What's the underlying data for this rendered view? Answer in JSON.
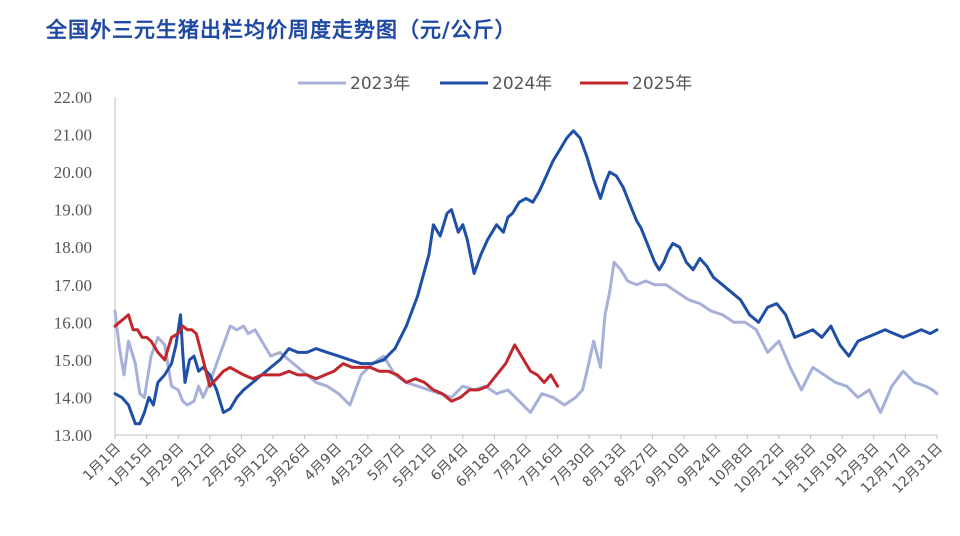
{
  "chart_data": {
    "type": "line",
    "title": "全国外三元生猪出栏均价周度走势图（元/公斤）",
    "xlabel": "",
    "ylabel": "",
    "ylim": [
      13.0,
      22.0
    ],
    "y_ticks": [
      "13.00",
      "14.00",
      "15.00",
      "16.00",
      "17.00",
      "18.00",
      "19.00",
      "20.00",
      "21.00",
      "22.00"
    ],
    "x_tick_labels": [
      "1月1日",
      "1月15日",
      "1月29日",
      "2月12日",
      "2月26日",
      "3月12日",
      "3月26日",
      "4月9日",
      "4月23日",
      "5月7日",
      "5月21日",
      "6月4日",
      "6月18日",
      "7月2日",
      "7月16日",
      "7月30日",
      "8月13日",
      "8月27日",
      "9月10日",
      "9月24日",
      "10月8日",
      "10月22日",
      "11月5日",
      "11月19日",
      "12月3日",
      "12月17日",
      "12月31日"
    ],
    "x_unit": "day_of_year",
    "x_range": [
      1,
      365
    ],
    "grid": false,
    "legend_position": "top",
    "series": [
      {
        "name": "2023年",
        "color": "#a7b0d9",
        "x": [
          1,
          3,
          5,
          7,
          10,
          12,
          14,
          17,
          20,
          23,
          26,
          29,
          31,
          33,
          36,
          38,
          40,
          43,
          46,
          49,
          52,
          55,
          58,
          60,
          63,
          66,
          70,
          74,
          78,
          82,
          86,
          90,
          95,
          100,
          105,
          110,
          115,
          120,
          125,
          130,
          135,
          140,
          145,
          150,
          155,
          160,
          165,
          170,
          175,
          180,
          185,
          190,
          195,
          200,
          205,
          208,
          210,
          213,
          216,
          218,
          220,
          222,
          225,
          228,
          232,
          236,
          240,
          245,
          250,
          255,
          260,
          265,
          270,
          275,
          280,
          285,
          290,
          295,
          300,
          305,
          310,
          315,
          320,
          325,
          330,
          335,
          340,
          345,
          350,
          355,
          360,
          363,
          365
        ],
        "values": [
          16.3,
          15.3,
          14.6,
          15.5,
          14.9,
          14.1,
          14.0,
          15.1,
          15.6,
          15.4,
          14.3,
          14.2,
          13.9,
          13.8,
          13.9,
          14.3,
          14.0,
          14.4,
          14.9,
          15.4,
          15.9,
          15.8,
          15.9,
          15.7,
          15.8,
          15.5,
          15.1,
          15.2,
          15.0,
          14.8,
          14.6,
          14.4,
          14.3,
          14.1,
          13.8,
          14.6,
          14.9,
          15.1,
          14.6,
          14.4,
          14.3,
          14.2,
          14.1,
          14.0,
          14.3,
          14.2,
          14.3,
          14.1,
          14.2,
          13.9,
          13.6,
          14.1,
          14.0,
          13.8,
          14.0,
          14.2,
          14.7,
          15.5,
          14.8,
          16.2,
          16.8,
          17.6,
          17.4,
          17.1,
          17.0,
          17.1,
          17.0,
          17.0,
          16.8,
          16.6,
          16.5,
          16.3,
          16.2,
          16.0,
          16.0,
          15.8,
          15.2,
          15.5,
          14.8,
          14.2,
          14.8,
          14.6,
          14.4,
          14.3,
          14.0,
          14.2,
          13.6,
          14.3,
          14.7,
          14.4,
          14.3,
          14.2,
          14.1
        ]
      },
      {
        "name": "2024年",
        "color": "#1f4fa6",
        "x": [
          1,
          4,
          7,
          10,
          12,
          14,
          16,
          18,
          20,
          23,
          26,
          28,
          30,
          31,
          32,
          34,
          36,
          38,
          40,
          43,
          46,
          49,
          52,
          55,
          58,
          62,
          66,
          70,
          74,
          78,
          82,
          86,
          90,
          95,
          100,
          105,
          110,
          115,
          120,
          125,
          130,
          135,
          140,
          142,
          145,
          148,
          150,
          153,
          155,
          157,
          160,
          163,
          166,
          170,
          173,
          175,
          177,
          180,
          183,
          186,
          189,
          192,
          195,
          198,
          201,
          204,
          207,
          210,
          213,
          216,
          218,
          220,
          223,
          226,
          228,
          230,
          232,
          234,
          236,
          238,
          240,
          242,
          244,
          246,
          248,
          251,
          254,
          257,
          260,
          263,
          266,
          270,
          274,
          278,
          282,
          286,
          290,
          294,
          298,
          302,
          306,
          310,
          314,
          318,
          322,
          326,
          330,
          334,
          338,
          342,
          346,
          350,
          354,
          358,
          362,
          365
        ],
        "values": [
          14.1,
          14.0,
          13.8,
          13.3,
          13.3,
          13.6,
          14.0,
          13.8,
          14.4,
          14.6,
          14.9,
          15.4,
          16.2,
          15.2,
          14.4,
          15.0,
          15.1,
          14.7,
          14.8,
          14.6,
          14.2,
          13.6,
          13.7,
          14.0,
          14.2,
          14.4,
          14.6,
          14.8,
          15.0,
          15.3,
          15.2,
          15.2,
          15.3,
          15.2,
          15.1,
          15.0,
          14.9,
          14.9,
          15.0,
          15.3,
          15.9,
          16.7,
          17.8,
          18.6,
          18.3,
          18.9,
          19.0,
          18.4,
          18.6,
          18.2,
          17.3,
          17.8,
          18.2,
          18.6,
          18.4,
          18.8,
          18.9,
          19.2,
          19.3,
          19.2,
          19.5,
          19.9,
          20.3,
          20.6,
          20.9,
          21.1,
          20.9,
          20.4,
          19.8,
          19.3,
          19.7,
          20.0,
          19.9,
          19.6,
          19.3,
          19.0,
          18.7,
          18.5,
          18.2,
          17.9,
          17.6,
          17.4,
          17.6,
          17.9,
          18.1,
          18.0,
          17.6,
          17.4,
          17.7,
          17.5,
          17.2,
          17.0,
          16.8,
          16.6,
          16.2,
          16.0,
          16.4,
          16.5,
          16.2,
          15.6,
          15.7,
          15.8,
          15.6,
          15.9,
          15.4,
          15.1,
          15.5,
          15.6,
          15.7,
          15.8,
          15.7,
          15.6,
          15.7,
          15.8,
          15.7,
          15.8
        ]
      },
      {
        "name": "2025年",
        "color": "#c0282d",
        "x": [
          1,
          3,
          5,
          7,
          9,
          11,
          13,
          15,
          17,
          20,
          23,
          26,
          29,
          31,
          33,
          35,
          37,
          40,
          43,
          46,
          49,
          52,
          55,
          58,
          62,
          66,
          70,
          74,
          78,
          82,
          86,
          90,
          94,
          98,
          102,
          106,
          110,
          114,
          118,
          122,
          126,
          130,
          134,
          138,
          142,
          146,
          150,
          154,
          158,
          162,
          166,
          170,
          174,
          178,
          182,
          185,
          188,
          191,
          194,
          197
        ],
        "values": [
          15.9,
          16.0,
          16.1,
          16.2,
          15.8,
          15.8,
          15.6,
          15.6,
          15.5,
          15.2,
          15.0,
          15.6,
          15.7,
          15.9,
          15.8,
          15.8,
          15.7,
          15.0,
          14.3,
          14.5,
          14.7,
          14.8,
          14.7,
          14.6,
          14.5,
          14.6,
          14.6,
          14.6,
          14.7,
          14.6,
          14.6,
          14.5,
          14.6,
          14.7,
          14.9,
          14.8,
          14.8,
          14.8,
          14.7,
          14.7,
          14.6,
          14.4,
          14.5,
          14.4,
          14.2,
          14.1,
          13.9,
          14.0,
          14.2,
          14.2,
          14.3,
          14.6,
          14.9,
          15.4,
          15.0,
          14.7,
          14.6,
          14.4,
          14.6,
          14.3
        ]
      }
    ]
  }
}
